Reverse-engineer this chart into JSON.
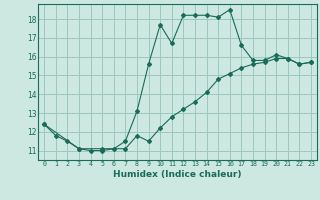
{
  "title": "",
  "xlabel": "Humidex (Indice chaleur)",
  "ylabel": "",
  "bg_color": "#cce8e0",
  "grid_color": "#9dc8bc",
  "line_color": "#1a6b5a",
  "xlim": [
    -0.5,
    23.5
  ],
  "ylim": [
    10.5,
    18.8
  ],
  "yticks": [
    11,
    12,
    13,
    14,
    15,
    16,
    17,
    18
  ],
  "xticks": [
    0,
    1,
    2,
    3,
    4,
    5,
    6,
    7,
    8,
    9,
    10,
    11,
    12,
    13,
    14,
    15,
    16,
    17,
    18,
    19,
    20,
    21,
    22,
    23
  ],
  "curve1_x": [
    0,
    1,
    2,
    3,
    4,
    5,
    6,
    7,
    8,
    9,
    10,
    11,
    12,
    13,
    14,
    15,
    16,
    17,
    18,
    19,
    20,
    21,
    22,
    23
  ],
  "curve1_y": [
    12.4,
    11.8,
    11.5,
    11.1,
    11.0,
    11.0,
    11.1,
    11.5,
    13.1,
    15.6,
    17.7,
    16.7,
    18.2,
    18.2,
    18.2,
    18.1,
    18.5,
    16.6,
    15.8,
    15.8,
    16.1,
    15.9,
    15.6,
    15.7
  ],
  "curve2_x": [
    0,
    3,
    5,
    7,
    8,
    9,
    10,
    11,
    12,
    13,
    14,
    15,
    16,
    17,
    18,
    19,
    20,
    21,
    22,
    23
  ],
  "curve2_y": [
    12.4,
    11.1,
    11.1,
    11.1,
    11.8,
    11.5,
    12.2,
    12.8,
    13.2,
    13.6,
    14.1,
    14.8,
    15.1,
    15.4,
    15.6,
    15.7,
    15.9,
    15.9,
    15.6,
    15.7
  ]
}
